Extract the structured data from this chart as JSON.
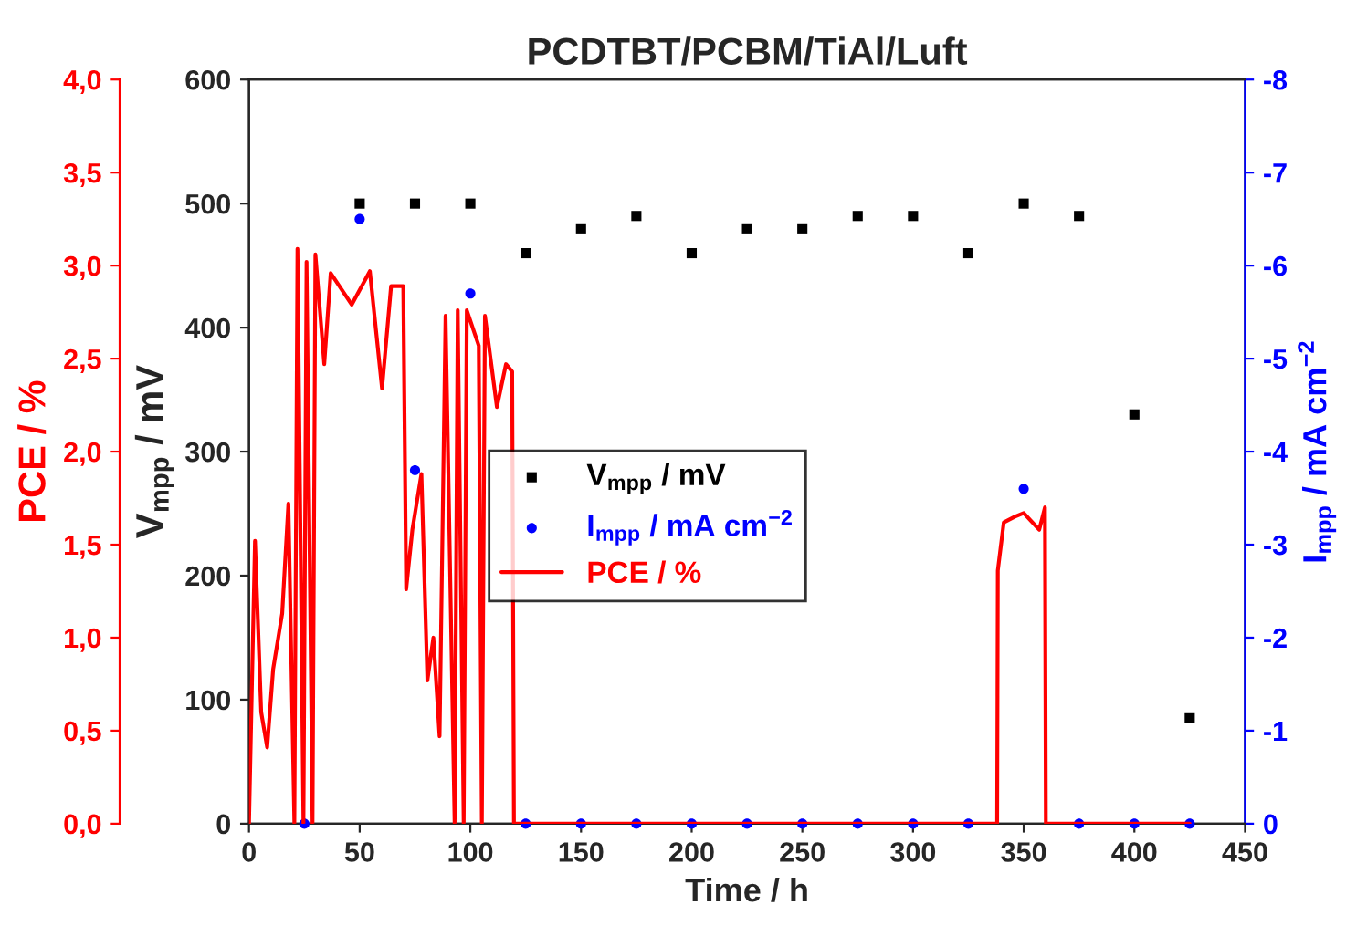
{
  "chart_data": {
    "type": "scatter",
    "title": "PCDTBT/PCBM/TiAl/Luft",
    "xlabel": "Time / h",
    "ylabel": "V$_{mpp}$ / mV",
    "y2label": "I$_{mpp}$ / mA cm$^{−2}$",
    "y3label": "PCE / %",
    "xlim": [
      0,
      450
    ],
    "xticks": [
      0,
      50,
      100,
      150,
      200,
      250,
      300,
      350,
      400,
      450
    ],
    "ylim": [
      0,
      600
    ],
    "yticks": [
      0,
      100,
      200,
      300,
      400,
      500,
      600
    ],
    "y2lim": [
      0,
      -8
    ],
    "y2ticks": [
      0,
      -1,
      -2,
      -3,
      -4,
      -5,
      -6,
      -7,
      -8
    ],
    "y3lim": [
      0,
      4
    ],
    "y3ticks": [
      {
        "value": 0,
        "label": "0,0"
      },
      {
        "value": 0.5,
        "label": "0,5"
      },
      {
        "value": 1,
        "label": "1,0"
      },
      {
        "value": 1.5,
        "label": "1,5"
      },
      {
        "value": 2,
        "label": "2,0"
      },
      {
        "value": 2.5,
        "label": "2,5"
      },
      {
        "value": 3,
        "label": "3,0"
      },
      {
        "value": 3.5,
        "label": "3,5"
      },
      {
        "value": 4,
        "label": "4,0"
      }
    ],
    "legend": "center",
    "grid": false,
    "series": [
      {
        "name": "V$_{mpp}$ / mV",
        "marker": "square",
        "color": "#000000",
        "x": [
          50,
          75,
          100,
          125,
          150,
          175,
          200,
          225,
          250,
          275,
          300,
          325,
          350,
          375,
          400,
          425
        ],
        "values": [
          500,
          500,
          500,
          460,
          480,
          490,
          460,
          480,
          480,
          490,
          490,
          460,
          500,
          490,
          330,
          85
        ]
      },
      {
        "name": "I$_{mpp}$ / mA cm$^{−2}$",
        "marker": "circle",
        "axis": "y2",
        "color": "#0000ff",
        "x": [
          25,
          50,
          75,
          100,
          125,
          150,
          175,
          200,
          225,
          250,
          275,
          300,
          325,
          350,
          375,
          400,
          425
        ],
        "values": [
          0,
          -6.5,
          -3.8,
          -5.7,
          0,
          0,
          0,
          0,
          0,
          0,
          0,
          0,
          0,
          -3.6,
          0,
          0,
          0
        ]
      },
      {
        "name": "PCE / %",
        "type": "line",
        "marker": "none",
        "line_style": "solid",
        "axis": "y3",
        "color": "#ff0000",
        "x": [
          0,
          2.7,
          5.5,
          8.2,
          10.9,
          15,
          17.8,
          20.5,
          21.9,
          24.6,
          26,
          28.7,
          30,
          34,
          36.9,
          46.4,
          54.6,
          60.1,
          64.2,
          69.7,
          71,
          73.8,
          77.9,
          80.6,
          83.3,
          86.1,
          88.8,
          92.9,
          94.3,
          97,
          98.4,
          103.8,
          105.2,
          106.6,
          112,
          116.1,
          118.9,
          119.7,
          200,
          338,
          338.3,
          341,
          346,
          350,
          357,
          359.6,
          360,
          425
        ],
        "values": [
          0,
          1.52,
          0.6,
          0.41,
          0.83,
          1.13,
          1.72,
          0,
          3.09,
          0,
          3.02,
          0,
          3.06,
          2.47,
          2.96,
          2.79,
          2.97,
          2.34,
          2.89,
          2.89,
          1.26,
          1.58,
          1.88,
          0.77,
          1.0,
          0.47,
          2.73,
          0,
          2.76,
          0,
          2.76,
          2.57,
          0,
          2.73,
          2.24,
          2.47,
          2.43,
          0,
          0,
          0,
          1.36,
          1.62,
          1.65,
          1.67,
          1.58,
          1.7,
          0,
          0
        ]
      }
    ]
  }
}
